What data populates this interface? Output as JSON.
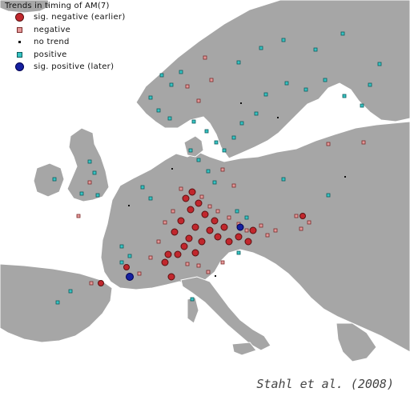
{
  "legend": {
    "title": "Trends in timing of AM(7)",
    "items": [
      {
        "label": "sig. negative (earlier)",
        "symbol": "big-red-circle",
        "color": "#c1272d"
      },
      {
        "label": "negative",
        "symbol": "small-pink-square",
        "color": "#e59a9a"
      },
      {
        "label": "no trend",
        "symbol": "tiny-black-dot",
        "color": "#111111"
      },
      {
        "label": "positive",
        "symbol": "small-cyan-square",
        "color": "#36c4c4"
      },
      {
        "label": "sig. positive (later)",
        "symbol": "big-blue-circle",
        "color": "#1520a0"
      }
    ]
  },
  "credit": "Stahl et al. (2008)",
  "colors": {
    "land": "#a6a6a6",
    "sea": "#ffffff",
    "border": "#ffffff"
  }
}
